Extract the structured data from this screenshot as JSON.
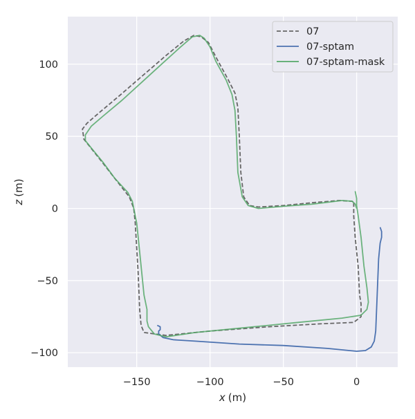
{
  "chart_data": {
    "type": "line",
    "xlabel_var": "x",
    "xlabel_unit": "(m)",
    "ylabel_var": "z",
    "ylabel_unit": "(m)",
    "xlim": [
      -197,
      28
    ],
    "ylim": [
      -110,
      133
    ],
    "xticks": [
      -150,
      -100,
      -50,
      0
    ],
    "xtick_labels": [
      "−150",
      "−100",
      "−50",
      "0"
    ],
    "yticks": [
      -100,
      -50,
      0,
      50,
      100
    ],
    "ytick_labels": [
      "−100",
      "−50",
      "0",
      "50",
      "100"
    ],
    "grid": true,
    "legend_position": "top-right",
    "colors": {
      "background": "#eaeaf2",
      "grid": "#ffffff",
      "ground_truth": "#666666",
      "sptam": "#4c72b0",
      "sptam_mask": "#55a868"
    },
    "series": [
      {
        "name": "07",
        "style": "dashed",
        "color": "#666666",
        "points": [
          [
            -2,
            4
          ],
          [
            -2,
            -5
          ],
          [
            -1,
            -20
          ],
          [
            1,
            -40
          ],
          [
            2,
            -60
          ],
          [
            3,
            -66
          ],
          [
            3,
            -75
          ],
          [
            -2,
            -79
          ],
          [
            -25,
            -80
          ],
          [
            -60,
            -82
          ],
          [
            -100,
            -85
          ],
          [
            -130,
            -88
          ],
          [
            -145,
            -86
          ],
          [
            -147,
            -81
          ],
          [
            -148,
            -70
          ],
          [
            -149,
            -45
          ],
          [
            -151,
            -10
          ],
          [
            -152,
            0
          ],
          [
            -155,
            8
          ],
          [
            -162,
            17
          ],
          [
            -175,
            34
          ],
          [
            -186,
            48
          ],
          [
            -187,
            55
          ],
          [
            -184,
            59
          ],
          [
            -176,
            66
          ],
          [
            -162,
            78
          ],
          [
            -146,
            92
          ],
          [
            -130,
            106
          ],
          [
            -118,
            116
          ],
          [
            -111,
            120
          ],
          [
            -106,
            119
          ],
          [
            -101,
            115
          ],
          [
            -96,
            105
          ],
          [
            -88,
            90
          ],
          [
            -83,
            80
          ],
          [
            -81,
            70
          ],
          [
            -80,
            50
          ],
          [
            -79,
            25
          ],
          [
            -77,
            8
          ],
          [
            -73,
            2
          ],
          [
            -67,
            1
          ],
          [
            -50,
            2
          ],
          [
            -30,
            4
          ],
          [
            -12,
            5.5
          ],
          [
            -3,
            5
          ],
          [
            -2,
            4
          ]
        ]
      },
      {
        "name": "07-sptam",
        "style": "solid",
        "color": "#4c72b0",
        "points": [
          [
            -136,
            -81
          ],
          [
            -134,
            -82
          ],
          [
            -134,
            -84
          ],
          [
            -135,
            -85
          ],
          [
            -135,
            -87
          ],
          [
            -132,
            -89.5
          ],
          [
            -125,
            -91
          ],
          [
            -110,
            -92
          ],
          [
            -80,
            -94
          ],
          [
            -50,
            -95
          ],
          [
            -20,
            -97
          ],
          [
            0,
            -99
          ],
          [
            6,
            -98.5
          ],
          [
            10,
            -96
          ],
          [
            12,
            -92
          ],
          [
            13,
            -85
          ],
          [
            14,
            -60
          ],
          [
            15,
            -35
          ],
          [
            16,
            -24
          ],
          [
            17,
            -20
          ],
          [
            17,
            -16
          ],
          [
            16,
            -13
          ]
        ]
      },
      {
        "name": "07-sptam-mask",
        "style": "solid",
        "color": "#55a868",
        "points": [
          [
            -1,
            12
          ],
          [
            0,
            7
          ],
          [
            0,
            2
          ],
          [
            1,
            -5
          ],
          [
            3,
            -20
          ],
          [
            5,
            -40
          ],
          [
            7,
            -55
          ],
          [
            8,
            -65
          ],
          [
            7,
            -70
          ],
          [
            3,
            -74
          ],
          [
            -10,
            -76
          ],
          [
            -40,
            -79
          ],
          [
            -80,
            -83
          ],
          [
            -110,
            -86
          ],
          [
            -130,
            -89
          ],
          [
            -138,
            -87
          ],
          [
            -142,
            -82
          ],
          [
            -143,
            -78
          ],
          [
            -143,
            -70
          ],
          [
            -145,
            -60
          ],
          [
            -147,
            -40
          ],
          [
            -149,
            -20
          ],
          [
            -150,
            -10
          ],
          [
            -152,
            0
          ],
          [
            -153,
            5
          ],
          [
            -156,
            11
          ],
          [
            -165,
            21
          ],
          [
            -173,
            32
          ],
          [
            -181,
            42
          ],
          [
            -185,
            47
          ],
          [
            -185,
            51
          ],
          [
            -181,
            57
          ],
          [
            -173,
            64
          ],
          [
            -160,
            75
          ],
          [
            -146,
            88
          ],
          [
            -132,
            101
          ],
          [
            -120,
            112
          ],
          [
            -112,
            119
          ],
          [
            -107,
            120
          ],
          [
            -104,
            118
          ],
          [
            -100,
            112
          ],
          [
            -96,
            102
          ],
          [
            -89,
            89
          ],
          [
            -85,
            79
          ],
          [
            -83,
            68
          ],
          [
            -82,
            50
          ],
          [
            -81,
            25
          ],
          [
            -78,
            8
          ],
          [
            -74,
            2
          ],
          [
            -67,
            0
          ],
          [
            -50,
            1.5
          ],
          [
            -30,
            3
          ],
          [
            -10,
            5.5
          ],
          [
            -3,
            5
          ],
          [
            -1,
            3
          ],
          [
            0,
            0
          ]
        ]
      }
    ]
  }
}
